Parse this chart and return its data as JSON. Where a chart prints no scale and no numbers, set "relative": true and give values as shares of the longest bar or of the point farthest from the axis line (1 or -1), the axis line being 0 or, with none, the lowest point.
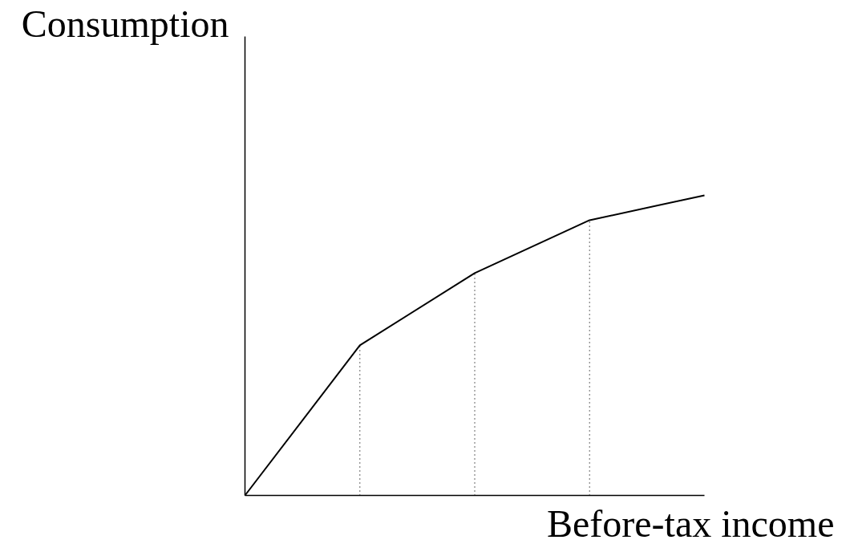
{
  "chart_data": {
    "type": "line",
    "relative": true,
    "xlabel": "Before-tax income",
    "ylabel": "Consumption",
    "categories": [
      null,
      null,
      null,
      null,
      null
    ],
    "marker": "none",
    "line_style": "solid",
    "series": [
      {
        "color": "#000000",
        "values": [
          0,
          0.5,
          0.741,
          0.917,
          1
        ]
      }
    ]
  }
}
